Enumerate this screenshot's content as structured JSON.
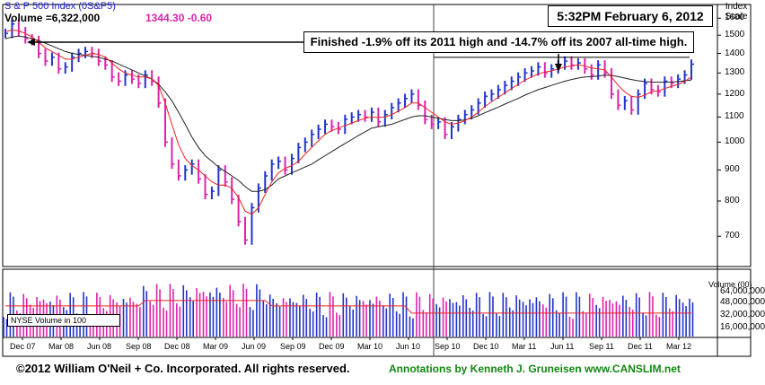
{
  "header": {
    "ticker_line": "S & P 500 Index   (0S&P5)",
    "volume_label": "Volume =6,322,000",
    "price_change": "1344.30   -0.60",
    "timestamp": "5:32PM February 6, 2012",
    "annotation": "Finished -1.9% off its 2011 high and -14.7% off its 2007 all-time high."
  },
  "price_axis": {
    "title": "Index Scale"
  },
  "volume_axis": {
    "title": "Volume (00)"
  },
  "volume_legend": "NYSE Volume in 100",
  "footer": {
    "copyright": "©2012 William O'Neil + Co. Incorporated. All rights reserved.",
    "credit": "Annotations by Kenneth J. Gruneisen www.CANSLIM.net"
  },
  "colors": {
    "up_bar": "#2233cc",
    "down_bar": "#dd22aa",
    "ma_short": "#ee2222",
    "ma_long": "#222222",
    "annotation_line": "#000000"
  },
  "chart_data": {
    "type": "line",
    "title": "S & P 500 Index (0S&P5)",
    "price_scale": "log",
    "price_ticks": [
      700,
      800,
      900,
      1000,
      1100,
      1200,
      1300,
      1400,
      1500,
      1600
    ],
    "volume_ticks": [
      "64,000,000",
      "48,000,000",
      "32,000,000",
      "16,000,000"
    ],
    "x_ticks": [
      "Dec 07",
      "Mar 08",
      "Jun 08",
      "Sep 08",
      "Dec 08",
      "Mar 09",
      "Jun 09",
      "Sep 09",
      "Dec 09",
      "Mar 10",
      "Jun 10",
      "Sep 10",
      "Dec 10",
      "Mar 11",
      "Jun 11",
      "Sep 11",
      "Dec 11",
      "Mar 12"
    ],
    "last_close": 1344.3,
    "change": -0.6,
    "resistance_level": 1370,
    "price_weekly_close": [
      1510,
      1565,
      1520,
      1480,
      1470,
      1400,
      1360,
      1380,
      1320,
      1330,
      1380,
      1400,
      1410,
      1400,
      1360,
      1340,
      1280,
      1260,
      1290,
      1270,
      1250,
      1290,
      1260,
      1160,
      1000,
      920,
      880,
      900,
      920,
      870,
      820,
      830,
      900,
      860,
      805,
      740,
      690,
      780,
      840,
      880,
      920,
      930,
      900,
      940,
      980,
      1000,
      1030,
      1050,
      1070,
      1060,
      1050,
      1090,
      1100,
      1110,
      1100,
      1120,
      1080,
      1110,
      1140,
      1160,
      1180,
      1200,
      1150,
      1090,
      1070,
      1080,
      1030,
      1060,
      1090,
      1110,
      1130,
      1160,
      1190,
      1200,
      1220,
      1240,
      1260,
      1280,
      1300,
      1310,
      1330,
      1300,
      1320,
      1340,
      1360,
      1340,
      1350,
      1320,
      1290,
      1340,
      1300,
      1200,
      1150,
      1170,
      1130,
      1200,
      1250,
      1220,
      1210,
      1260,
      1250,
      1270,
      1290,
      1344
    ],
    "ma_short": [
      1520,
      1530,
      1525,
      1510,
      1490,
      1460,
      1430,
      1410,
      1390,
      1370,
      1370,
      1380,
      1390,
      1400,
      1395,
      1380,
      1350,
      1320,
      1300,
      1290,
      1280,
      1280,
      1270,
      1240,
      1160,
      1070,
      990,
      940,
      915,
      900,
      880,
      860,
      850,
      850,
      840,
      810,
      770,
      760,
      780,
      820,
      860,
      890,
      905,
      915,
      930,
      955,
      980,
      1005,
      1030,
      1045,
      1055,
      1065,
      1075,
      1085,
      1095,
      1100,
      1098,
      1100,
      1110,
      1125,
      1140,
      1160,
      1160,
      1140,
      1120,
      1100,
      1080,
      1070,
      1075,
      1085,
      1100,
      1120,
      1145,
      1165,
      1185,
      1205,
      1225,
      1245,
      1265,
      1280,
      1295,
      1305,
      1310,
      1320,
      1330,
      1335,
      1340,
      1335,
      1325,
      1320,
      1315,
      1280,
      1240,
      1210,
      1190,
      1185,
      1195,
      1210,
      1215,
      1225,
      1235,
      1245,
      1260,
      1280
    ],
    "ma_long": [
      1480,
      1490,
      1495,
      1490,
      1480,
      1470,
      1455,
      1440,
      1425,
      1410,
      1400,
      1395,
      1390,
      1385,
      1380,
      1370,
      1360,
      1345,
      1330,
      1315,
      1300,
      1285,
      1270,
      1245,
      1210,
      1170,
      1120,
      1070,
      1020,
      980,
      950,
      930,
      910,
      895,
      880,
      865,
      845,
      830,
      830,
      835,
      850,
      870,
      880,
      890,
      900,
      910,
      920,
      935,
      950,
      965,
      980,
      995,
      1010,
      1025,
      1040,
      1055,
      1060,
      1065,
      1070,
      1080,
      1090,
      1100,
      1105,
      1105,
      1100,
      1095,
      1090,
      1085,
      1085,
      1088,
      1095,
      1105,
      1118,
      1130,
      1142,
      1155,
      1168,
      1180,
      1195,
      1208,
      1220,
      1230,
      1240,
      1250,
      1260,
      1268,
      1275,
      1280,
      1282,
      1285,
      1290,
      1288,
      1282,
      1275,
      1268,
      1262,
      1258,
      1256,
      1255,
      1255,
      1256,
      1258,
      1262,
      1266
    ]
  }
}
